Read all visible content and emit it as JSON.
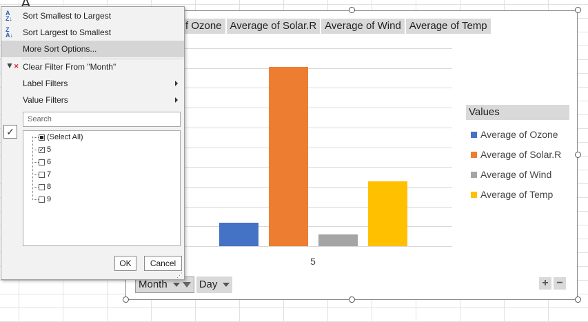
{
  "background": {
    "cell_letter": "A"
  },
  "chart": {
    "field_buttons": [
      "f Ozone",
      "Average of Solar.R",
      "Average of Wind",
      "Average of Temp"
    ],
    "bottom_fields": {
      "month": "Month",
      "day": "Day"
    },
    "zoom": {
      "plus": "+",
      "minus": "−"
    }
  },
  "chart_data": {
    "type": "bar",
    "categories": [
      "5"
    ],
    "series": [
      {
        "name": "Average of Ozone",
        "values": [
          23.6
        ],
        "color": "#4472C4"
      },
      {
        "name": "Average of Solar.R",
        "values": [
          181.3
        ],
        "color": "#ED7D31"
      },
      {
        "name": "Average of Wind",
        "values": [
          11.6
        ],
        "color": "#A5A5A5"
      },
      {
        "name": "Average of Temp",
        "values": [
          65.5
        ],
        "color": "#FFC000"
      }
    ],
    "ylim": [
      0,
      200
    ],
    "grid": true,
    "legend": {
      "title": "Values",
      "position": "right"
    }
  },
  "menu": {
    "items": [
      {
        "label": "Sort Smallest to Largest",
        "icon": "sort-ascending-icon"
      },
      {
        "label": "Sort Largest to Smallest",
        "icon": "sort-descending-icon"
      },
      {
        "label": "More Sort Options...",
        "highlighted": true
      },
      {
        "label": "Clear Filter From \"Month\"",
        "icon": "clear-filter-icon"
      },
      {
        "label": "Label Filters",
        "submenu": true
      },
      {
        "label": "Value Filters",
        "submenu": true
      }
    ],
    "search_placeholder": "Search",
    "checklist": [
      {
        "label": "(Select All)",
        "state": "partial"
      },
      {
        "label": "5",
        "state": "checked"
      },
      {
        "label": "6",
        "state": "unchecked"
      },
      {
        "label": "7",
        "state": "unchecked"
      },
      {
        "label": "8",
        "state": "unchecked"
      },
      {
        "label": "9",
        "state": "unchecked"
      }
    ],
    "ok_label": "OK",
    "cancel_label": "Cancel"
  }
}
